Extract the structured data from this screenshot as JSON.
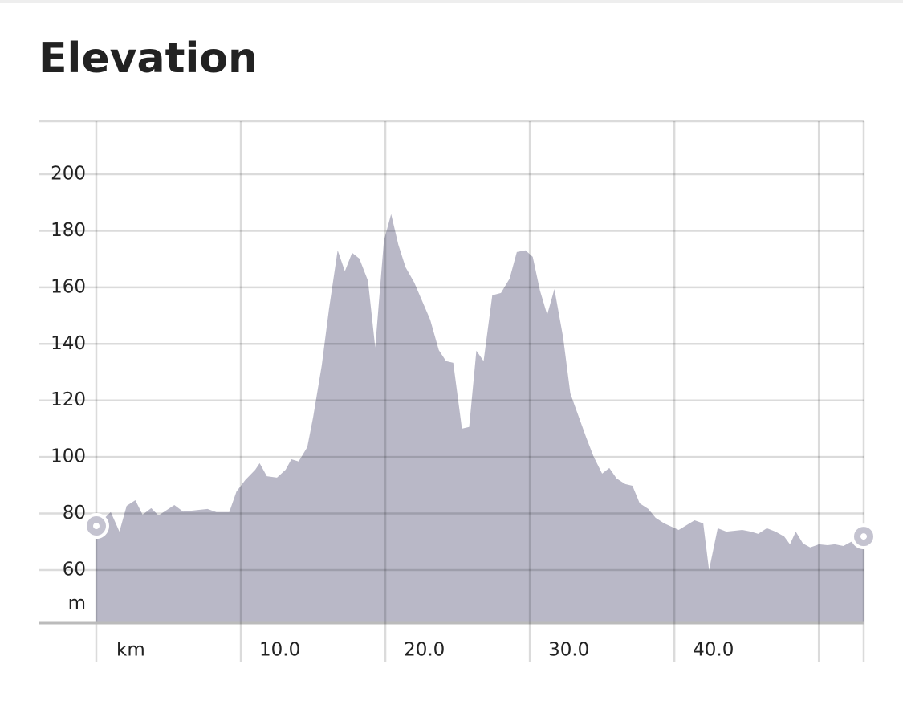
{
  "chart_data": {
    "type": "area",
    "title": "Elevation",
    "x_label": "km",
    "y_label": "m",
    "color": "#b9b8c7",
    "grid": true,
    "xlim": [
      0,
      53.1
    ],
    "ylim": [
      41.25,
      218.75
    ],
    "xticks": [
      {
        "value": 10,
        "label": "10.0"
      },
      {
        "value": 20,
        "label": "20.0"
      },
      {
        "value": 30,
        "label": "30.0"
      },
      {
        "value": 40,
        "label": "40.0"
      },
      {
        "value": 50,
        "label": null
      }
    ],
    "yticks": [
      60,
      80,
      100,
      120,
      140,
      160,
      180,
      200
    ],
    "x": [
      0,
      1,
      1.6,
      2.1,
      2.7,
      3.2,
      3.8,
      4.3,
      5.4,
      6,
      7.7,
      8.3,
      9.2,
      9.7,
      10.3,
      11,
      11.3,
      11.8,
      12.5,
      13.1,
      13.5,
      14,
      14.6,
      15,
      15.6,
      16.1,
      16.7,
      17.2,
      17.7,
      18.2,
      18.8,
      19.3,
      19.9,
      20.4,
      20.9,
      21.4,
      22,
      23.1,
      23.7,
      24.2,
      24.7,
      25.3,
      25.8,
      26.3,
      26.8,
      27.4,
      28,
      28.6,
      29.1,
      29.7,
      30.2,
      30.7,
      31.2,
      31.7,
      32.3,
      32.8,
      33.3,
      33.9,
      34.4,
      35,
      35.5,
      36,
      36.6,
      37.1,
      37.6,
      38.2,
      38.7,
      39.3,
      40.3,
      41.4,
      42,
      42.4,
      43,
      43.6,
      44.7,
      45.3,
      45.8,
      46.4,
      47,
      47.6,
      48,
      48.4,
      48.9,
      49.4,
      50,
      50.6,
      51.1,
      51.7,
      52.2,
      53.1
    ],
    "values": [
      75.6,
      80.5,
      73.6,
      82.7,
      84.7,
      79.6,
      81.9,
      79.3,
      83,
      80.7,
      81.6,
      80.5,
      80.5,
      87.8,
      91.8,
      95.5,
      97.8,
      93.2,
      92.7,
      95.5,
      99.2,
      98.4,
      103.5,
      114,
      132.4,
      152.3,
      173.1,
      165.7,
      172.2,
      170.2,
      162.3,
      138.7,
      176.5,
      185.9,
      175.1,
      167.1,
      161.7,
      148.6,
      137.8,
      133.9,
      133.3,
      110,
      110.6,
      137.6,
      133.9,
      157.2,
      158,
      163.1,
      172.5,
      173.1,
      170.8,
      158.9,
      150.3,
      159.4,
      142.4,
      122.5,
      115.4,
      106.9,
      100.3,
      94.1,
      96.1,
      92.4,
      90.4,
      89.8,
      83.6,
      81.6,
      78.5,
      76.5,
      74.2,
      77.6,
      76.5,
      60,
      74.8,
      73.6,
      74.2,
      73.6,
      72.8,
      74.8,
      73.6,
      71.9,
      69.1,
      73.6,
      69.4,
      68,
      69.1,
      68.8,
      69.1,
      68.5,
      69.9,
      71.9
    ]
  }
}
